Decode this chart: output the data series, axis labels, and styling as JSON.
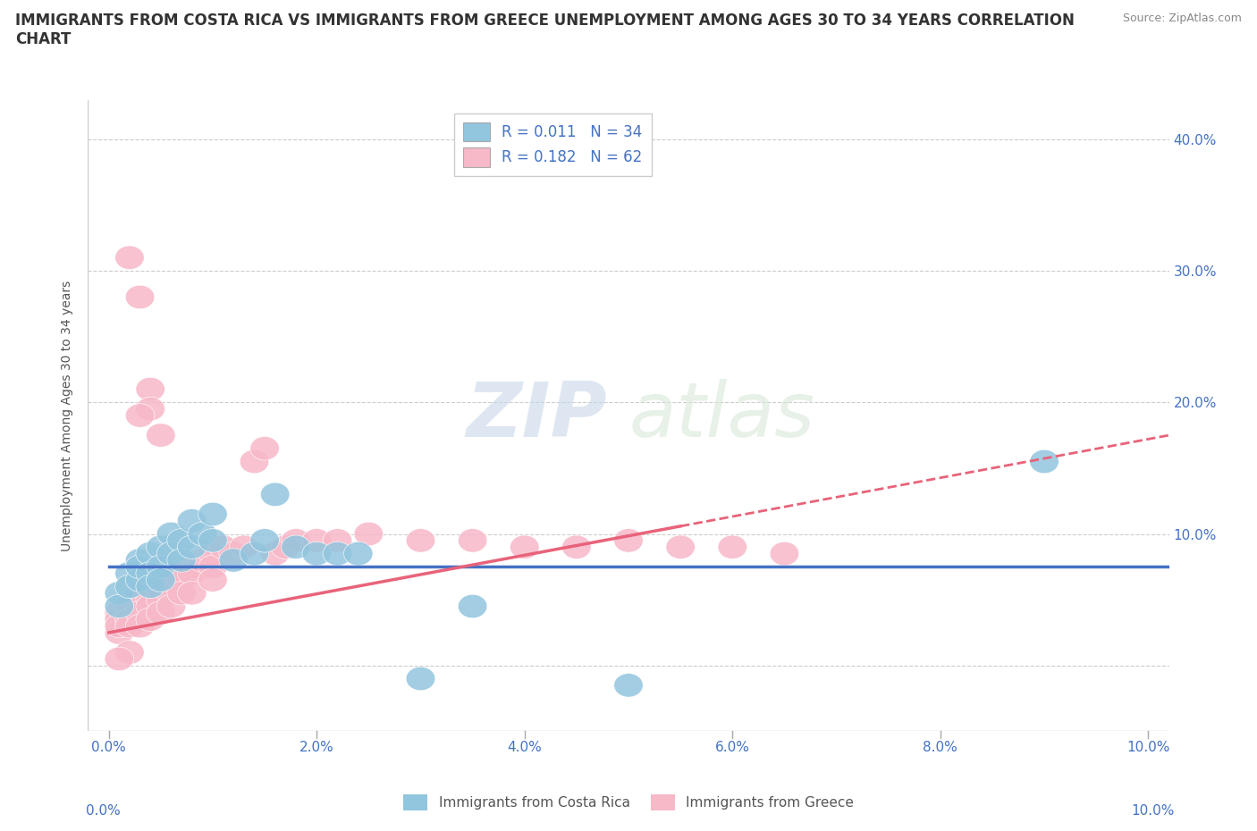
{
  "title_line1": "IMMIGRANTS FROM COSTA RICA VS IMMIGRANTS FROM GREECE UNEMPLOYMENT AMONG AGES 30 TO 34 YEARS CORRELATION",
  "title_line2": "CHART",
  "source": "Source: ZipAtlas.com",
  "ylabel": "Unemployment Among Ages 30 to 34 years",
  "xlim": [
    -0.002,
    0.102
  ],
  "ylim": [
    -0.05,
    0.43
  ],
  "yticks": [
    0.0,
    0.1,
    0.2,
    0.3,
    0.4
  ],
  "xticks": [
    0.0,
    0.02,
    0.04,
    0.06,
    0.08,
    0.1
  ],
  "xtick_labels": [
    "0.0%",
    "2.0%",
    "4.0%",
    "6.0%",
    "8.0%",
    "10.0%"
  ],
  "ytick_labels_right": [
    "",
    "10.0%",
    "20.0%",
    "30.0%",
    "40.0%"
  ],
  "color_cr": "#92C5DE",
  "color_gr": "#F7B8C8",
  "trendline_cr": "#4472C4",
  "trendline_gr": "#E8637A",
  "legend_r_cr": "R = 0.011",
  "legend_n_cr": "N = 34",
  "legend_r_gr": "R = 0.182",
  "legend_n_gr": "N = 62",
  "label_cr": "Immigrants from Costa Rica",
  "label_gr": "Immigrants from Greece",
  "watermark": "ZIPatlas",
  "cr_trend_x0": 0.0,
  "cr_trend_x1": 0.102,
  "cr_trend_y0": 0.075,
  "cr_trend_y1": 0.075,
  "gr_trend_x0": 0.0,
  "gr_trend_x1": 0.102,
  "gr_trend_y0": 0.025,
  "gr_trend_y1": 0.175,
  "costa_rica_x": [
    0.001,
    0.001,
    0.002,
    0.002,
    0.003,
    0.003,
    0.003,
    0.004,
    0.004,
    0.004,
    0.005,
    0.005,
    0.005,
    0.006,
    0.006,
    0.007,
    0.007,
    0.008,
    0.008,
    0.009,
    0.01,
    0.01,
    0.012,
    0.014,
    0.015,
    0.016,
    0.018,
    0.02,
    0.022,
    0.024,
    0.03,
    0.035,
    0.05,
    0.09
  ],
  "costa_rica_y": [
    0.055,
    0.045,
    0.07,
    0.06,
    0.08,
    0.065,
    0.075,
    0.085,
    0.07,
    0.06,
    0.09,
    0.075,
    0.065,
    0.1,
    0.085,
    0.095,
    0.08,
    0.11,
    0.09,
    0.1,
    0.115,
    0.095,
    0.08,
    0.085,
    0.095,
    0.13,
    0.09,
    0.085,
    0.085,
    0.085,
    -0.01,
    0.045,
    -0.015,
    0.155
  ],
  "greece_x": [
    0.001,
    0.001,
    0.001,
    0.001,
    0.002,
    0.002,
    0.002,
    0.002,
    0.003,
    0.003,
    0.003,
    0.003,
    0.003,
    0.004,
    0.004,
    0.004,
    0.004,
    0.005,
    0.005,
    0.005,
    0.005,
    0.006,
    0.006,
    0.006,
    0.006,
    0.007,
    0.007,
    0.007,
    0.008,
    0.008,
    0.008,
    0.009,
    0.01,
    0.01,
    0.01,
    0.011,
    0.012,
    0.013,
    0.014,
    0.015,
    0.016,
    0.017,
    0.018,
    0.02,
    0.022,
    0.025,
    0.03,
    0.035,
    0.04,
    0.045,
    0.05,
    0.055,
    0.06,
    0.065,
    0.002,
    0.003,
    0.004,
    0.005,
    0.004,
    0.003,
    0.002,
    0.001
  ],
  "greece_y": [
    0.04,
    0.035,
    0.025,
    0.03,
    0.045,
    0.04,
    0.035,
    0.03,
    0.05,
    0.055,
    0.045,
    0.04,
    0.03,
    0.055,
    0.05,
    0.045,
    0.035,
    0.06,
    0.055,
    0.05,
    0.04,
    0.065,
    0.06,
    0.055,
    0.045,
    0.07,
    0.065,
    0.055,
    0.075,
    0.07,
    0.055,
    0.08,
    0.085,
    0.075,
    0.065,
    0.09,
    0.085,
    0.09,
    0.155,
    0.165,
    0.085,
    0.09,
    0.095,
    0.095,
    0.095,
    0.1,
    0.095,
    0.095,
    0.09,
    0.09,
    0.095,
    0.09,
    0.09,
    0.085,
    0.31,
    0.28,
    0.21,
    0.175,
    0.195,
    0.19,
    0.01,
    0.005
  ]
}
